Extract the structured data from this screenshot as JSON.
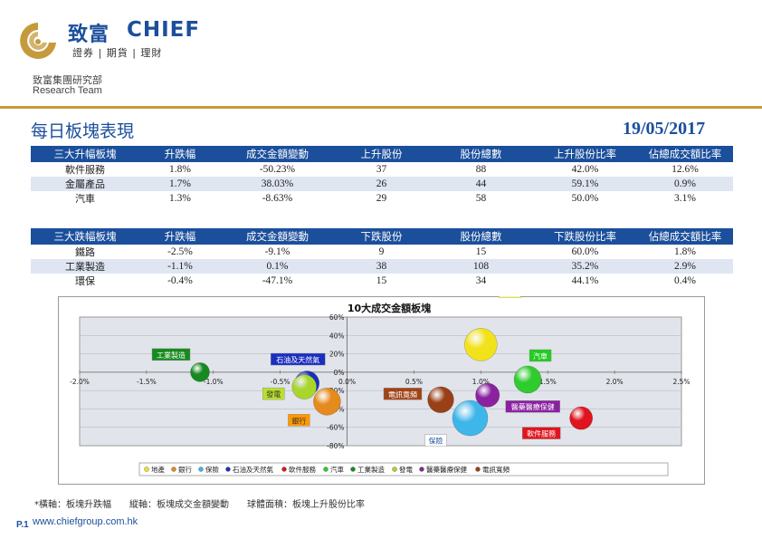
{
  "header": {
    "logo_cn": "致富",
    "logo_en": "CHIEF",
    "logo_sub": "證券 | 期貨 | 理財",
    "dept_cn": "致富集團研究部",
    "dept_en": "Research Team"
  },
  "title": "每日板塊表現",
  "date": "19/05/2017",
  "gainers": {
    "headers": [
      "三大升幅板塊",
      "升跌幅",
      "成交金額變動",
      "上升股份",
      "股份總數",
      "上升股份比率",
      "佔總成交額比率"
    ],
    "rows": [
      [
        "軟件服務",
        "1.8%",
        "-50.23%",
        "37",
        "88",
        "42.0%",
        "12.6%"
      ],
      [
        "金屬產品",
        "1.7%",
        "38.03%",
        "26",
        "44",
        "59.1%",
        "0.9%"
      ],
      [
        "汽車",
        "1.3%",
        "-8.63%",
        "29",
        "58",
        "50.0%",
        "3.1%"
      ]
    ]
  },
  "losers": {
    "headers": [
      "三大跌幅板塊",
      "升跌幅",
      "成交金額變動",
      "下跌股份",
      "股份總數",
      "下跌股份比率",
      "佔總成交額比率"
    ],
    "rows": [
      [
        "鐵路",
        "-2.5%",
        "-9.1%",
        "9",
        "15",
        "60.0%",
        "1.8%"
      ],
      [
        "工業製造",
        "-1.1%",
        "0.1%",
        "38",
        "108",
        "35.2%",
        "2.9%"
      ],
      [
        "環保",
        "-0.4%",
        "-47.1%",
        "15",
        "34",
        "44.1%",
        "0.4%"
      ]
    ]
  },
  "chart_data": {
    "type": "scatter",
    "title": "10大成交金額板塊",
    "xlim": [
      -2.0,
      2.5
    ],
    "ylim": [
      -80,
      60
    ],
    "x_ticks": [
      "-2.0%",
      "-1.5%",
      "-1.0%",
      "-0.5%",
      "0.0%",
      "0.5%",
      "1.0%",
      "1.5%",
      "2.0%",
      "2.5%"
    ],
    "y_ticks": [
      "60%",
      "40%",
      "20%",
      "0%",
      "-20%",
      "-40%",
      "-60%",
      "-80%"
    ],
    "series": [
      {
        "name": "地產",
        "x": 1.0,
        "y": 30,
        "size": 0.6,
        "color": "#f2e21a",
        "label_bg": "#ffff66",
        "label_fg": "#333333"
      },
      {
        "name": "銀行",
        "x": -0.15,
        "y": -32,
        "size": 0.5,
        "color": "#e58a1c",
        "label_bg": "#ff9900",
        "label_fg": "#333333"
      },
      {
        "name": "保險",
        "x": 0.92,
        "y": -50,
        "size": 0.65,
        "color": "#3fb6ea",
        "label_bg": "#ffffff",
        "label_fg": "#1b4f9c"
      },
      {
        "name": "石油及天然氣",
        "x": -0.3,
        "y": -12,
        "size": 0.45,
        "color": "#1a2fbf",
        "label_bg": "#1a2fbf",
        "label_fg": "#ffffff"
      },
      {
        "name": "軟件服務",
        "x": 1.75,
        "y": -50,
        "size": 0.42,
        "color": "#e0141e",
        "label_bg": "#e0141e",
        "label_fg": "#ffffff"
      },
      {
        "name": "汽車",
        "x": 1.35,
        "y": -8,
        "size": 0.5,
        "color": "#2ecc2e",
        "label_bg": "#22cc22",
        "label_fg": "#ffffff"
      },
      {
        "name": "工業製造",
        "x": -1.1,
        "y": 0,
        "size": 0.35,
        "color": "#168a1e",
        "label_bg": "#168a1e",
        "label_fg": "#ffffff"
      },
      {
        "name": "發電",
        "x": -0.32,
        "y": -16,
        "size": 0.45,
        "color": "#a9d62a",
        "label_bg": "#b8e02a",
        "label_fg": "#333333"
      },
      {
        "name": "醫藥醫療保健",
        "x": 1.05,
        "y": -25,
        "size": 0.44,
        "color": "#8a22a0",
        "label_bg": "#8a22a0",
        "label_fg": "#ffffff"
      },
      {
        "name": "電訊寬頻",
        "x": 0.7,
        "y": -30,
        "size": 0.48,
        "color": "#9a4018",
        "label_bg": "#a04418",
        "label_fg": "#ffffff"
      }
    ],
    "legend_placement": "bottom"
  },
  "footnote": "*橫軸：板塊升跌幅　　縱軸：板塊成交金額變動　　球體面積：板塊上升股份比率",
  "page_no": "P.1",
  "website": "www.chiefgroup.com.hk"
}
